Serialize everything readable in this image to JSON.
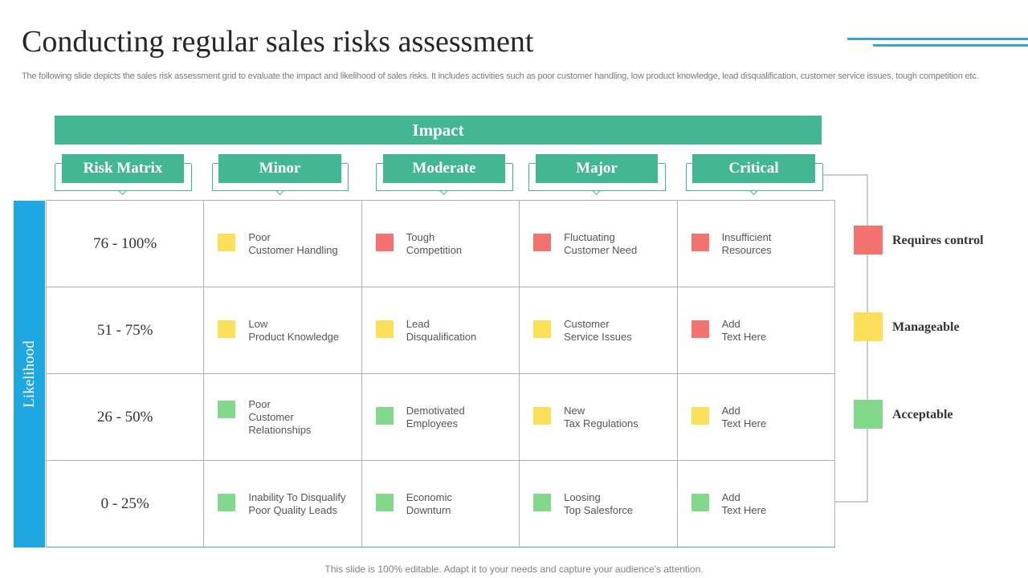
{
  "title": "Conducting regular sales risks assessment",
  "subtitle": "The following slide depicts the sales risk assessment grid to evaluate the impact and likelihood of sales risks. It includes activities such as poor customer handling, low product knowledge, lead disqualification, customer service issues, tough competition etc.",
  "impact_label": "Impact",
  "likelihood_label": "Likelihood",
  "columns": [
    "Risk Matrix",
    "Minor",
    "Moderate",
    "Major",
    "Critical"
  ],
  "colors": {
    "accent_green": "#43b794",
    "accent_blue": "#1ea7e1",
    "requires_control": "#f47371",
    "manageable": "#fde05a",
    "acceptable": "#83d88c"
  },
  "rows": [
    {
      "range": "76 - 100%",
      "cells": [
        {
          "level": "manageable",
          "lines": [
            "Poor",
            "Customer Handling"
          ]
        },
        {
          "level": "requires_control",
          "lines": [
            "Tough",
            "Competition"
          ]
        },
        {
          "level": "requires_control",
          "lines": [
            "Fluctuating",
            "Customer Need"
          ]
        },
        {
          "level": "requires_control",
          "lines": [
            "Insufficient",
            "Resources"
          ]
        }
      ]
    },
    {
      "range": "51 - 75%",
      "cells": [
        {
          "level": "manageable",
          "lines": [
            "Low",
            "Product Knowledge"
          ]
        },
        {
          "level": "manageable",
          "lines": [
            "Lead",
            "Disqualification"
          ]
        },
        {
          "level": "manageable",
          "lines": [
            "Customer",
            "Service Issues"
          ]
        },
        {
          "level": "requires_control",
          "lines": [
            "Add",
            "Text Here"
          ]
        }
      ]
    },
    {
      "range": "26 - 50%",
      "cells": [
        {
          "level": "acceptable",
          "lines": [
            "Poor",
            "Customer",
            "Relationships"
          ]
        },
        {
          "level": "acceptable",
          "lines": [
            "Demotivated",
            "Employees"
          ]
        },
        {
          "level": "manageable",
          "lines": [
            "New",
            "Tax Regulations"
          ]
        },
        {
          "level": "manageable",
          "lines": [
            "Add",
            "Text Here"
          ]
        }
      ]
    },
    {
      "range": "0 - 25%",
      "cells": [
        {
          "level": "acceptable",
          "lines": [
            "Inability To Disqualify",
            "Poor Quality Leads"
          ]
        },
        {
          "level": "acceptable",
          "lines": [
            "Economic",
            "Downturn"
          ]
        },
        {
          "level": "acceptable",
          "lines": [
            "Loosing",
            "Top Salesforce"
          ]
        },
        {
          "level": "acceptable",
          "lines": [
            "Add",
            "Text Here"
          ]
        }
      ]
    }
  ],
  "legend": [
    {
      "level": "requires_control",
      "label": "Requires control"
    },
    {
      "level": "manageable",
      "label": "Manageable"
    },
    {
      "level": "acceptable",
      "label": "Acceptable"
    }
  ],
  "footer": "This slide is 100% editable. Adapt it to your needs and capture your audience's attention."
}
